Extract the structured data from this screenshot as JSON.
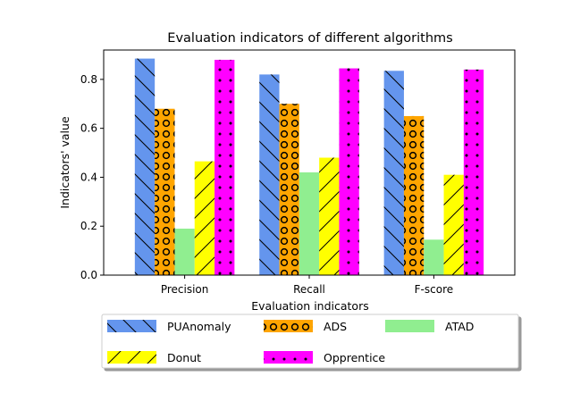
{
  "chart_data": {
    "type": "bar",
    "title": "Evaluation indicators of different algorithms",
    "xlabel": "Evaluation indicators",
    "ylabel": "Indicators' value",
    "categories": [
      "Precision",
      "Recall",
      "F-score"
    ],
    "ylim": [
      0,
      0.92
    ],
    "yticks": [
      "0.0",
      "0.2",
      "0.4",
      "0.6",
      "0.8"
    ],
    "grid": false,
    "legend_position": "bottom",
    "series": [
      {
        "name": "PUAnomaly",
        "values": [
          0.885,
          0.82,
          0.835
        ],
        "color": "#6495ED",
        "pattern": "backslash"
      },
      {
        "name": "ADS",
        "values": [
          0.68,
          0.7,
          0.65
        ],
        "color": "#FFA500",
        "pattern": "circles"
      },
      {
        "name": "ATAD",
        "values": [
          0.19,
          0.42,
          0.145
        ],
        "color": "#90EE90",
        "pattern": "none"
      },
      {
        "name": "Donut",
        "values": [
          0.465,
          0.48,
          0.41
        ],
        "color": "#FFFF00",
        "pattern": "slash"
      },
      {
        "name": "Opprentice",
        "values": [
          0.88,
          0.845,
          0.84
        ],
        "color": "#FF00FF",
        "pattern": "dots"
      }
    ]
  }
}
